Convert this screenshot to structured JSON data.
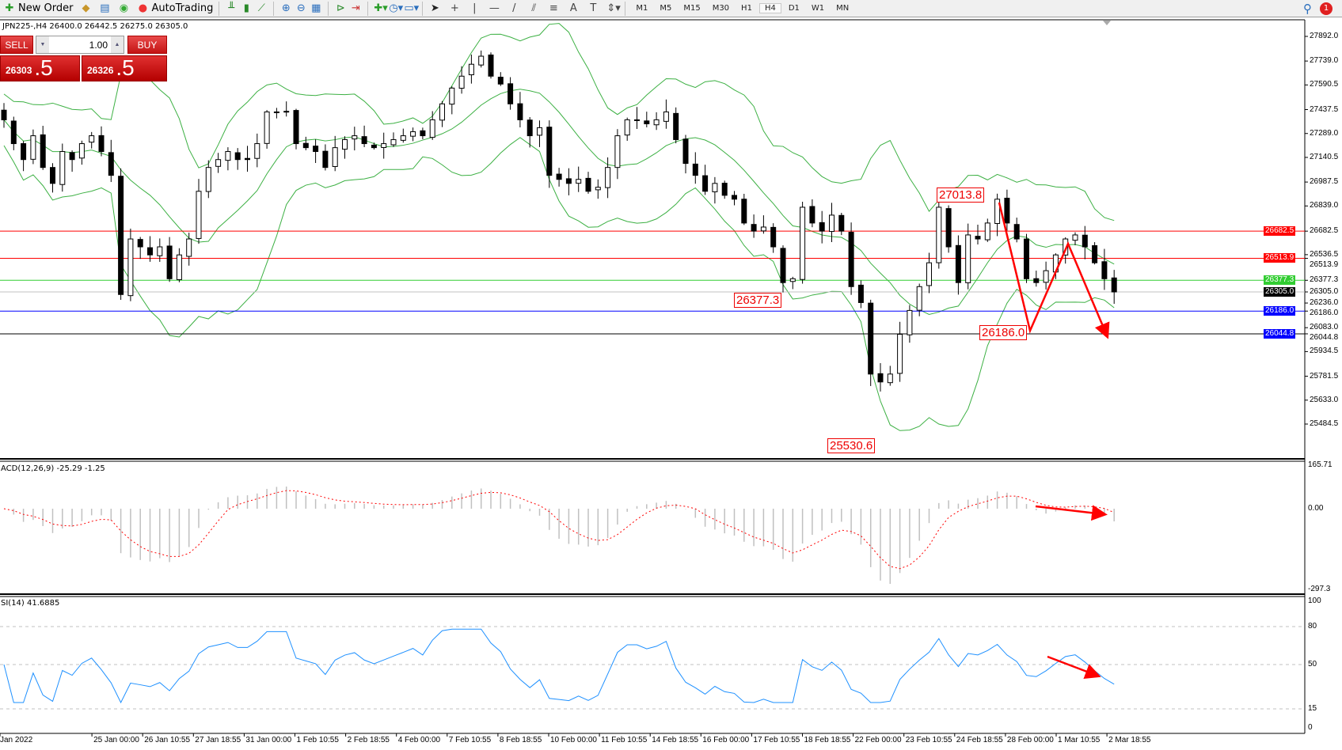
{
  "toolbar": {
    "new_order": "New Order",
    "autotrading": "AutoTrading",
    "timeframes": [
      "M1",
      "M5",
      "M15",
      "M30",
      "H1",
      "H4",
      "D1",
      "W1",
      "MN"
    ],
    "active_timeframe": "H4",
    "notification_count": "1",
    "icons": [
      "new-order-icon",
      "metaeditor-icon",
      "navigator-icon",
      "signals-icon",
      "autotrading-icon",
      "bar-chart-icon",
      "candlestick-icon",
      "line-chart-icon",
      "zoom-in-icon",
      "zoom-out-icon",
      "tile-windows-icon",
      "chart-shift-icon",
      "autoscroll-icon",
      "indicators-icon",
      "periods-icon",
      "templates-icon",
      "cursor-icon",
      "crosshair-icon",
      "vertical-line-icon",
      "horizontal-line-icon",
      "trendline-icon",
      "equidistant-channel-icon",
      "fibonacci-icon",
      "text-icon",
      "text-label-icon",
      "arrows-icon"
    ]
  },
  "chart": {
    "header": "JPN225-,H4  26400.0 26442.5 26275.0 26305.0",
    "symbol": "JPN225-",
    "timeframe": "H4",
    "ohlc": {
      "open": "26400.0",
      "high": "26442.5",
      "low": "26275.0",
      "close": "26305.0"
    },
    "closes": [
      27374,
      27226,
      27127,
      27275,
      27078,
      26979,
      27177,
      27127,
      27226,
      27275,
      27177,
      27029,
      26289,
      26634,
      26585,
      26535,
      26585,
      26387,
      26535,
      26634,
      26930,
      27078,
      27127,
      27177,
      27127,
      27127,
      27226,
      27423,
      27423,
      27423,
      27226,
      27201,
      27177,
      27078,
      27201,
      27251,
      27275,
      27226,
      27201,
      27226,
      27251,
      27275,
      27300,
      27275,
      27374,
      27473,
      27571,
      27645,
      27719,
      27769,
      27645,
      27596,
      27473,
      27374,
      27275,
      27325,
      27029,
      27004,
      26979,
      27004,
      26930,
      26955,
      27078,
      27275,
      27374,
      27374,
      27349,
      27374,
      27423,
      27251,
      27103,
      27029,
      26930,
      26979,
      26905,
      26881,
      26733,
      26683,
      26708,
      26585,
      26363,
      26387,
      26831,
      26733,
      26683,
      26782,
      26683,
      26338,
      26239,
      25795,
      25746,
      25795,
      26042,
      26190,
      26338,
      26486,
      26831,
      26585,
      26363,
      26659,
      26634,
      26733,
      26881,
      26733,
      26634,
      26387,
      26363,
      26437,
      26535,
      26634,
      26659,
      26585,
      26486,
      26387,
      26305
    ],
    "price_axis": [
      "27892.0",
      "27739.0",
      "27590.5",
      "27437.5",
      "27289.0",
      "27140.5",
      "26987.5",
      "26839.0",
      "26682.5",
      "26536.5",
      "26513.9",
      "26377.3",
      "26305.0",
      "26236.0",
      "26186.0",
      "26083.0",
      "26044.8",
      "25934.5",
      "25781.5",
      "25633.0",
      "25484.5"
    ],
    "levels": [
      {
        "price": 26682.5,
        "label": "26682.5",
        "color": "#ff0000"
      },
      {
        "price": 26513.9,
        "label": "26513.9",
        "color": "#ff0000"
      },
      {
        "price": 26377.3,
        "label": "26377.3",
        "color": "#32cd32"
      },
      {
        "price": 26305.0,
        "label": "26305.0",
        "color": "#000000",
        "line": "#c0c0c0"
      },
      {
        "price": 26186.0,
        "label": "26186.0",
        "color": "#0000ff"
      },
      {
        "price": 26044.8,
        "label": "26044.8",
        "color": "#0000ff",
        "line": "#000000"
      }
    ],
    "annotations": [
      "27013.8",
      "26377.3",
      "26186.0",
      "25530.6"
    ],
    "dates": [
      "Jan 2022",
      "25 Jan 00:00",
      "26 Jan 10:55",
      "27 Jan 18:55",
      "31 Jan 00:00",
      "1 Feb 10:55",
      "2 Feb 18:55",
      "4 Feb 00:00",
      "7 Feb 10:55",
      "8 Feb 18:55",
      "10 Feb 00:00",
      "11 Feb 10:55",
      "14 Feb 18:55",
      "16 Feb 00:00",
      "17 Feb 10:55",
      "18 Feb 18:55",
      "22 Feb 00:00",
      "23 Feb 10:55",
      "24 Feb 18:55",
      "28 Feb 00:00",
      "1 Mar 10:55",
      "2 Mar 18:55"
    ]
  },
  "trade_panel": {
    "sell": "SELL",
    "buy": "BUY",
    "lot": "1.00",
    "bid_main": "26303",
    "bid_frac": ".5",
    "ask_main": "26326",
    "ask_frac": ".5"
  },
  "macd": {
    "label": "ACD(12,26,9) -25.29 -1.25",
    "axis": [
      "165.71",
      "0.00",
      "-297.3"
    ],
    "colors": {
      "histogram": "#c0c0c0",
      "signal": "#ff0000"
    }
  },
  "rsi": {
    "label": "SI(14) 41.6885",
    "axis": [
      "100",
      "80",
      "50",
      "15",
      "0"
    ],
    "color": "#1e90ff"
  },
  "colors": {
    "bands": "#3cb043",
    "arrows": "#ff0000"
  }
}
